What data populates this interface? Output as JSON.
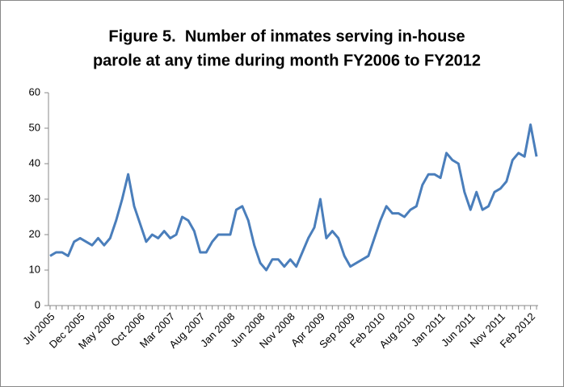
{
  "chart_data": {
    "type": "line",
    "title": [
      "Figure 5.  Number of inmates serving in-house",
      "parole at any time during month FY2006 to FY2012"
    ],
    "categories": [
      "Jul 2005",
      null,
      null,
      null,
      null,
      "Dec 2005",
      null,
      null,
      null,
      null,
      "May 2006",
      null,
      null,
      null,
      null,
      "Oct 2006",
      null,
      null,
      null,
      null,
      "Mar 2007",
      null,
      null,
      null,
      null,
      "Aug 2007",
      null,
      null,
      null,
      null,
      "Jan 2008",
      null,
      null,
      null,
      null,
      "Jun 2008",
      null,
      null,
      null,
      null,
      "Nov 2008",
      null,
      null,
      null,
      null,
      "Apr 2009",
      null,
      null,
      null,
      null,
      "Sep 2009",
      null,
      null,
      null,
      null,
      "Feb 2010",
      null,
      null,
      null,
      null,
      "Aug 2010",
      null,
      null,
      null,
      null,
      "Jan 2011",
      null,
      null,
      null,
      null,
      "Jun 2011",
      null,
      null,
      null,
      null,
      "Nov 2011",
      null,
      null,
      null,
      null,
      "Feb 2012",
      null
    ],
    "values": [
      14,
      15,
      15,
      14,
      18,
      19,
      18,
      17,
      19,
      17,
      19,
      24,
      30,
      37,
      28,
      23,
      18,
      20,
      19,
      21,
      19,
      20,
      25,
      24,
      21,
      15,
      15,
      18,
      20,
      20,
      20,
      27,
      28,
      24,
      17,
      12,
      10,
      13,
      13,
      11,
      13,
      11,
      15,
      19,
      22,
      30,
      19,
      21,
      19,
      14,
      11,
      12,
      13,
      14,
      19,
      24,
      28,
      26,
      26,
      25,
      27,
      28,
      34,
      37,
      37,
      36,
      43,
      41,
      40,
      32,
      27,
      32,
      27,
      28,
      32,
      33,
      35,
      41,
      43,
      42,
      51,
      42
    ],
    "color": "#4a7ebb",
    "ylim": [
      0,
      60
    ],
    "yticks": [
      0,
      10,
      20,
      30,
      40,
      50,
      60
    ],
    "grid": false
  }
}
